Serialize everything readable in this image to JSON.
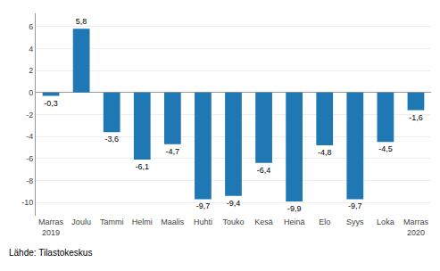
{
  "chart_data": {
    "type": "bar",
    "categories": [
      "Marras\n2019",
      "Joulu",
      "Tammi",
      "Helmi",
      "Maalis",
      "Huhti",
      "Touko",
      "Kesä",
      "Heinä",
      "Elo",
      "Syys",
      "Loka",
      "Marras\n2020"
    ],
    "values": [
      -0.3,
      5.8,
      -3.6,
      -6.1,
      -4.7,
      -9.7,
      -9.4,
      -6.4,
      -9.9,
      -4.8,
      -9.7,
      -4.5,
      -1.6
    ],
    "value_labels": [
      "-0,3",
      "5,8",
      "-3,6",
      "-6,1",
      "-4,7",
      "-9,7",
      "-9,4",
      "-6,4",
      "-9,9",
      "-4,8",
      "-9,7",
      "-4,5",
      "-1,6"
    ],
    "data_labels": true,
    "color": "#1F77B4",
    "ylim": [
      -11.2,
      7.2
    ],
    "yticks": [
      -10,
      -8,
      -6,
      -4,
      -2,
      0,
      2,
      4,
      6
    ],
    "grid": true,
    "annotations": [
      "Lähde: Tilastokeskus"
    ]
  }
}
